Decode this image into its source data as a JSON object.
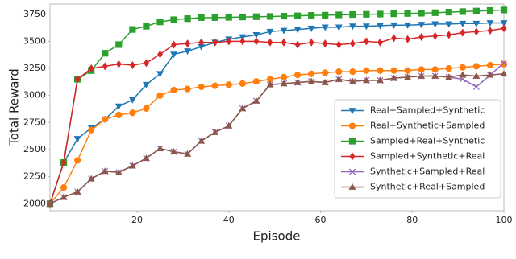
{
  "chart_data": {
    "type": "line",
    "x_label": "Episode",
    "y_label": "Total Reward",
    "xlim": [
      1,
      100
    ],
    "ylim": [
      1935,
      3845
    ],
    "xticks": [
      20,
      40,
      60,
      80,
      100
    ],
    "yticks": [
      2000,
      2250,
      2500,
      2750,
      3000,
      3250,
      3500,
      3750
    ],
    "legend": "lower right",
    "x": [
      1,
      4,
      7,
      10,
      13,
      16,
      19,
      22,
      25,
      28,
      31,
      34,
      37,
      40,
      43,
      46,
      49,
      52,
      55,
      58,
      61,
      64,
      67,
      70,
      73,
      76,
      79,
      82,
      85,
      88,
      91,
      94,
      97,
      100
    ],
    "series": [
      {
        "name": "Real+Sampled+Synthetic",
        "color": "#1f77b4",
        "marker": "down-triangle",
        "values": [
          2000,
          2380,
          2600,
          2700,
          2780,
          2900,
          2960,
          3100,
          3200,
          3380,
          3410,
          3450,
          3490,
          3520,
          3540,
          3560,
          3590,
          3600,
          3610,
          3620,
          3630,
          3630,
          3640,
          3640,
          3645,
          3650,
          3650,
          3655,
          3660,
          3660,
          3665,
          3665,
          3670,
          3670
        ]
      },
      {
        "name": "Real+Synthetic+Sampled",
        "color": "#ff7f0e",
        "marker": "circle",
        "values": [
          2000,
          2150,
          2400,
          2680,
          2780,
          2820,
          2840,
          2880,
          3000,
          3050,
          3060,
          3080,
          3090,
          3100,
          3110,
          3130,
          3150,
          3170,
          3190,
          3200,
          3210,
          3220,
          3220,
          3230,
          3230,
          3230,
          3230,
          3240,
          3240,
          3250,
          3260,
          3270,
          3280,
          3290
        ]
      },
      {
        "name": "Sampled+Real+Synthetic",
        "color": "#2ca02c",
        "marker": "square",
        "values": [
          2000,
          2380,
          3150,
          3230,
          3390,
          3470,
          3610,
          3640,
          3680,
          3700,
          3710,
          3720,
          3720,
          3722,
          3725,
          3728,
          3730,
          3733,
          3736,
          3740,
          3742,
          3745,
          3748,
          3750,
          3752,
          3755,
          3758,
          3760,
          3765,
          3770,
          3775,
          3780,
          3785,
          3790
        ]
      },
      {
        "name": "Sampled+Synthetic+Real",
        "color": "#d62728",
        "marker": "diamond",
        "values": [
          2000,
          2380,
          3150,
          3250,
          3270,
          3290,
          3280,
          3300,
          3380,
          3470,
          3480,
          3490,
          3490,
          3500,
          3500,
          3500,
          3490,
          3490,
          3470,
          3490,
          3480,
          3470,
          3480,
          3500,
          3490,
          3530,
          3520,
          3540,
          3550,
          3560,
          3580,
          3590,
          3600,
          3620
        ]
      },
      {
        "name": "Synthetic+Sampled+Real",
        "color": "#9467bd",
        "marker": "x",
        "values": [
          2000,
          2060,
          2110,
          2230,
          2300,
          2290,
          2350,
          2420,
          2510,
          2480,
          2460,
          2580,
          2660,
          2720,
          2880,
          2950,
          3100,
          3110,
          3120,
          3130,
          3120,
          3150,
          3130,
          3140,
          3140,
          3160,
          3170,
          3180,
          3180,
          3170,
          3150,
          3080,
          3190,
          3300
        ]
      },
      {
        "name": "Synthetic+Real+Sampled",
        "color": "#8c564b",
        "marker": "up-triangle",
        "values": [
          2000,
          2060,
          2110,
          2230,
          2300,
          2290,
          2350,
          2420,
          2510,
          2480,
          2460,
          2580,
          2660,
          2720,
          2880,
          2950,
          3100,
          3110,
          3120,
          3130,
          3120,
          3150,
          3130,
          3140,
          3140,
          3160,
          3170,
          3180,
          3180,
          3170,
          3190,
          3180,
          3190,
          3200
        ]
      }
    ]
  }
}
